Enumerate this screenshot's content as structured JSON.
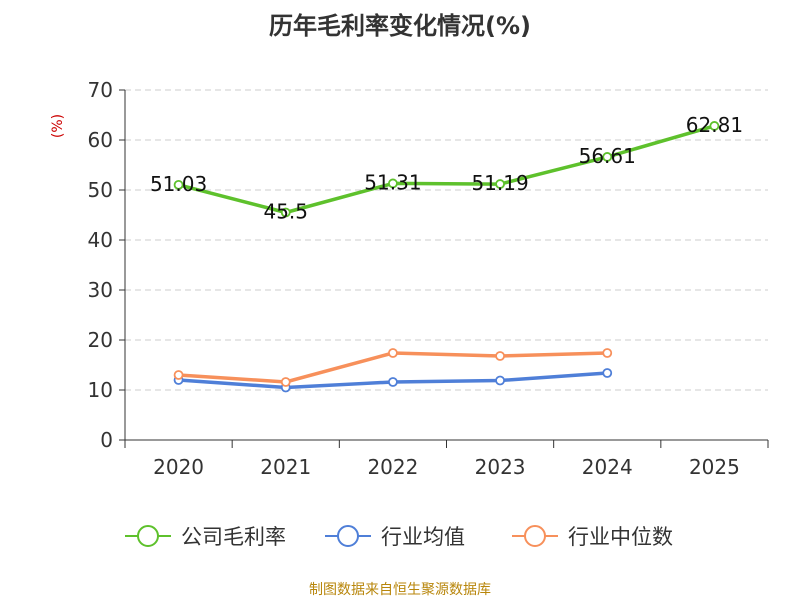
{
  "chart_data": {
    "type": "line",
    "title": "历年毛利率变化情况(%)",
    "ylabel": "(%)",
    "xlabel": "",
    "categories": [
      "2020",
      "2021",
      "2022",
      "2023",
      "2024",
      "2025"
    ],
    "ylim": [
      0,
      70
    ],
    "yticks": [
      0,
      10,
      20,
      30,
      40,
      50,
      60,
      70
    ],
    "grid": true,
    "legend_position": "bottom",
    "series": [
      {
        "name": "公司毛利率",
        "color": "#5ec12c",
        "values": [
          51.03,
          45.5,
          51.31,
          51.19,
          56.61,
          62.81
        ],
        "labels": [
          "51.03",
          "45.5",
          "51.31",
          "51.19",
          "56.61",
          "62.81"
        ]
      },
      {
        "name": "行业均值",
        "color": "#4f7fd8",
        "values": [
          12.0,
          10.5,
          11.6,
          11.9,
          13.4,
          null
        ]
      },
      {
        "name": "行业中位数",
        "color": "#f7905b",
        "values": [
          13.0,
          11.6,
          17.4,
          16.8,
          17.4,
          null
        ]
      }
    ]
  },
  "source": "制图数据来自恒生聚源数据库"
}
